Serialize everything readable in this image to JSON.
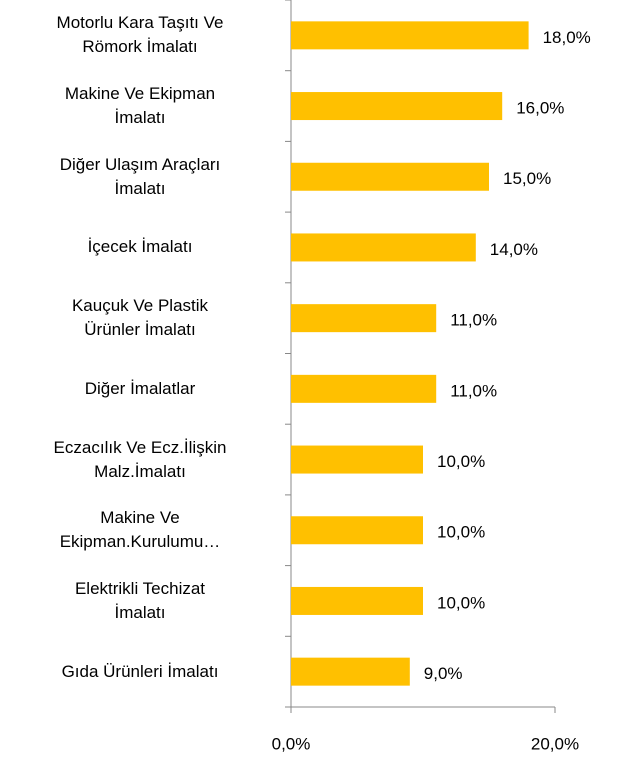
{
  "chart_data": {
    "type": "bar",
    "orientation": "horizontal",
    "categories": [
      "Motorlu Kara Taşıtı  Ve\nRömork İmalatı",
      "Makine Ve Ekipman\nİmalatı",
      "Diğer Ulaşım  Araçları\nİmalatı",
      "İçecek İmalatı",
      "Kauçuk Ve Plastik\nÜrünler İmalatı",
      "Diğer İmalatlar",
      "Eczacılık Ve Ecz.İlişkin\nMalz.İmalatı",
      "Makine Ve\nEkipman.Kurulumu…",
      "Elektrikli Techizat\nİmalatı",
      "Gıda Ürünleri İmalatı"
    ],
    "values": [
      18,
      16,
      15,
      14,
      11,
      11,
      10,
      10,
      10,
      9
    ],
    "value_labels": [
      "18,0%",
      "16,0%",
      "15,0%",
      "14,0%",
      "11,0%",
      "11,0%",
      "10,0%",
      "10,0%",
      "10,0%",
      "9,0%"
    ],
    "color": "#ffc000",
    "xlim": [
      0,
      20
    ],
    "xticks": [
      {
        "value": 0,
        "label": "0,0%"
      },
      {
        "value": 20,
        "label": "20,0%"
      }
    ],
    "grid": false
  }
}
